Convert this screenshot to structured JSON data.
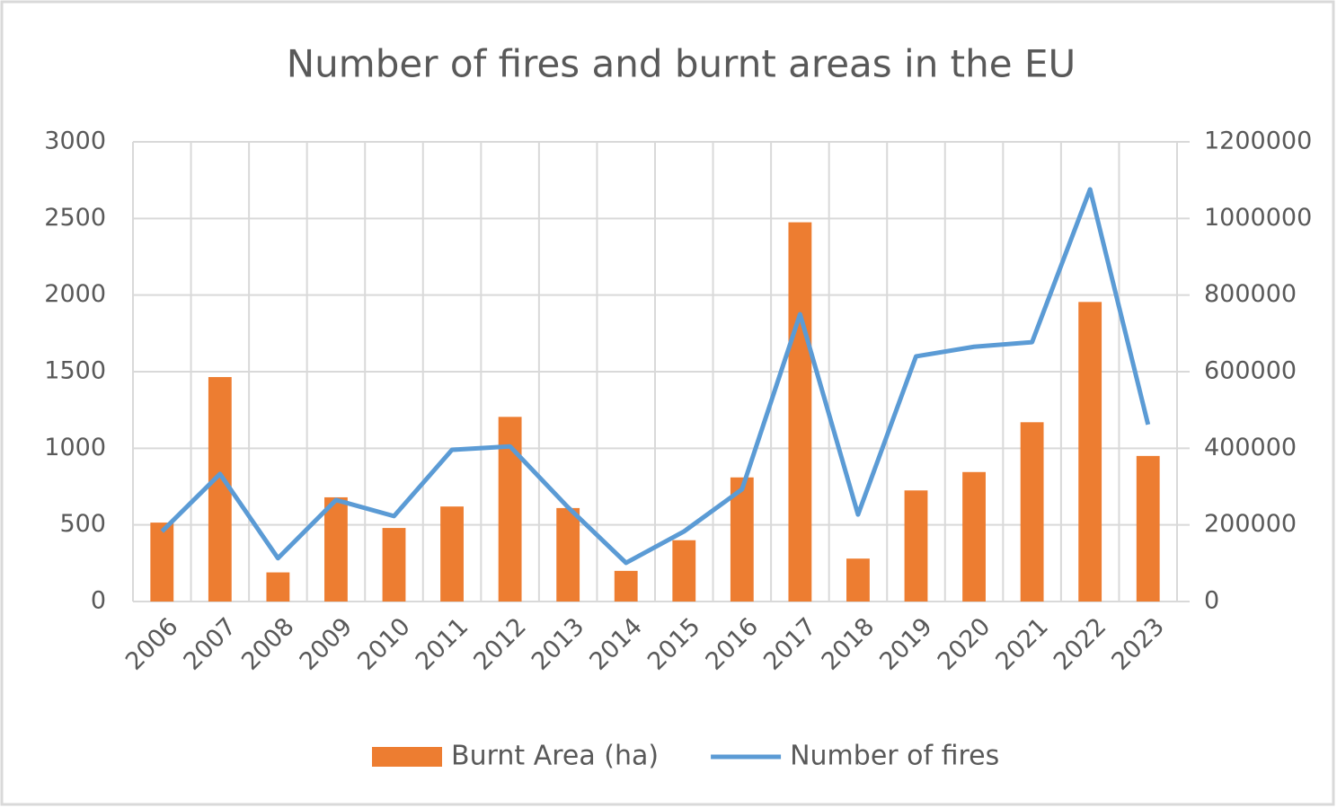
{
  "chart_data": {
    "type": "bar_line",
    "title": "Number of fires and burnt areas in the EU",
    "categories": [
      "2006",
      "2007",
      "2008",
      "2009",
      "2010",
      "2011",
      "2012",
      "2013",
      "2014",
      "2015",
      "2016",
      "2017",
      "2018",
      "2019",
      "2020",
      "2021",
      "2022",
      "2023"
    ],
    "series": [
      {
        "name": "Burnt Area (ha)",
        "type": "bar",
        "color": "#ed7d31",
        "axis": "y",
        "values": [
          515,
          1465,
          190,
          680,
          480,
          620,
          1205,
          610,
          200,
          400,
          810,
          2475,
          280,
          725,
          845,
          1170,
          1955,
          950
        ]
      },
      {
        "name": "Number of fires",
        "type": "line",
        "color": "#5b9bd5",
        "axis": "y2",
        "values": [
          183000,
          333000,
          113000,
          265000,
          223000,
          396000,
          405000,
          246000,
          101000,
          183000,
          293000,
          750000,
          227000,
          640000,
          665000,
          677000,
          1076000,
          462000
        ]
      }
    ],
    "ylim": [
      0,
      3000
    ],
    "yticks": [
      0,
      500,
      1000,
      1500,
      2000,
      2500,
      3000
    ],
    "y2lim": [
      0,
      1200000
    ],
    "y2ticks": [
      0,
      200000,
      400000,
      600000,
      800000,
      1000000,
      1200000
    ],
    "grid": true,
    "legend": "bottom"
  }
}
